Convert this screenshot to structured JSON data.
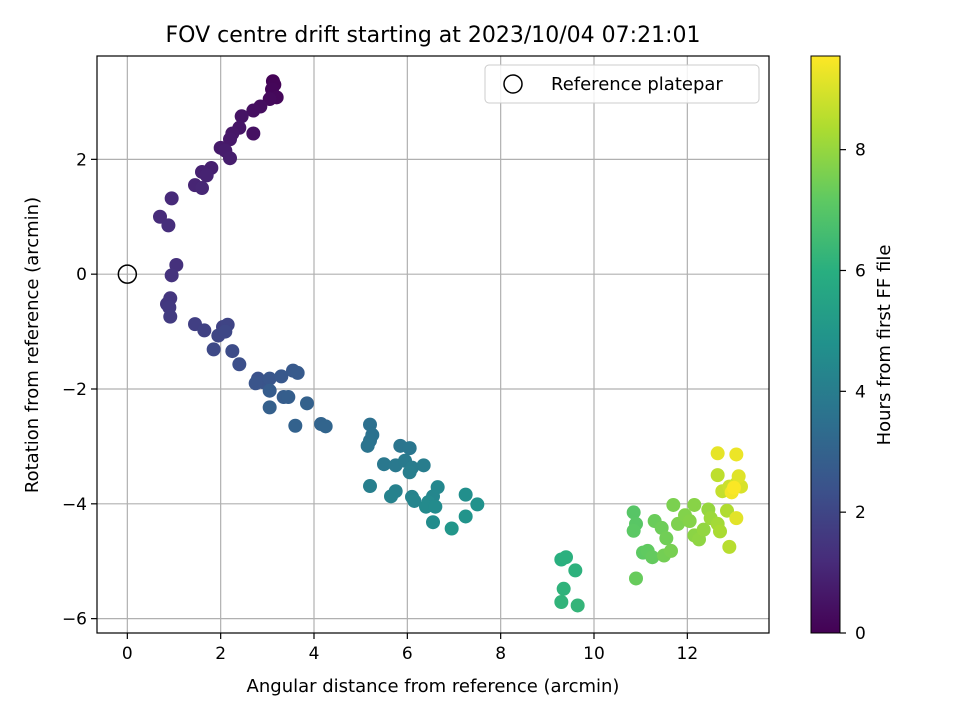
{
  "chart_data": {
    "type": "scatter",
    "title": "FOV centre drift starting at 2023/10/04 07:21:01",
    "xlabel": "Angular distance from reference (arcmin)",
    "ylabel": "Rotation from reference (arcmin)",
    "xlim": [
      -0.65,
      13.75
    ],
    "ylim": [
      -6.25,
      3.8
    ],
    "xticks": [
      0,
      2,
      4,
      6,
      8,
      10,
      12
    ],
    "yticks": [
      -6,
      -4,
      -2,
      0,
      2
    ],
    "xtick_labels": [
      "0",
      "2",
      "4",
      "6",
      "8",
      "10",
      "12"
    ],
    "ytick_labels": [
      "−6",
      "−4",
      "−2",
      "0",
      "2"
    ],
    "grid": true,
    "legend": {
      "location": "upper right",
      "entries": [
        "Reference platepar"
      ]
    },
    "colorbar": {
      "label": "Hours from first FF file",
      "colormap": "viridis",
      "range": [
        0,
        9.55
      ],
      "ticks": [
        0,
        2,
        4,
        6,
        8
      ],
      "tick_labels": [
        "0",
        "2",
        "4",
        "6",
        "8"
      ]
    },
    "reference_point": {
      "x": 0,
      "y": 0
    },
    "points": [
      {
        "x": 3.12,
        "y": 3.36,
        "h": 0.05
      },
      {
        "x": 3.15,
        "y": 3.3,
        "h": 0.1
      },
      {
        "x": 3.1,
        "y": 3.22,
        "h": 0.15
      },
      {
        "x": 3.2,
        "y": 3.08,
        "h": 0.2
      },
      {
        "x": 3.05,
        "y": 3.05,
        "h": 0.25
      },
      {
        "x": 2.85,
        "y": 2.92,
        "h": 0.35
      },
      {
        "x": 2.7,
        "y": 2.85,
        "h": 0.4
      },
      {
        "x": 2.7,
        "y": 2.45,
        "h": 0.45
      },
      {
        "x": 2.45,
        "y": 2.75,
        "h": 0.5
      },
      {
        "x": 2.4,
        "y": 2.55,
        "h": 0.55
      },
      {
        "x": 2.25,
        "y": 2.45,
        "h": 0.6
      },
      {
        "x": 2.2,
        "y": 2.35,
        "h": 0.65
      },
      {
        "x": 2.0,
        "y": 2.2,
        "h": 0.7
      },
      {
        "x": 2.1,
        "y": 2.15,
        "h": 0.75
      },
      {
        "x": 2.2,
        "y": 2.02,
        "h": 0.8
      },
      {
        "x": 1.8,
        "y": 1.85,
        "h": 0.85
      },
      {
        "x": 1.6,
        "y": 1.78,
        "h": 0.9
      },
      {
        "x": 1.7,
        "y": 1.72,
        "h": 0.95
      },
      {
        "x": 1.45,
        "y": 1.55,
        "h": 1.0
      },
      {
        "x": 1.6,
        "y": 1.5,
        "h": 1.05
      },
      {
        "x": 0.95,
        "y": 1.32,
        "h": 1.15
      },
      {
        "x": 0.7,
        "y": 1.0,
        "h": 1.2
      },
      {
        "x": 0.88,
        "y": 0.85,
        "h": 1.25
      },
      {
        "x": 1.05,
        "y": 0.16,
        "h": 1.35
      },
      {
        "x": 0.95,
        "y": -0.02,
        "h": 1.4
      },
      {
        "x": 0.92,
        "y": -0.42,
        "h": 1.5
      },
      {
        "x": 0.85,
        "y": -0.52,
        "h": 1.55
      },
      {
        "x": 0.9,
        "y": -0.58,
        "h": 1.6
      },
      {
        "x": 0.92,
        "y": -0.74,
        "h": 1.65
      },
      {
        "x": 1.45,
        "y": -0.87,
        "h": 1.8
      },
      {
        "x": 1.65,
        "y": -0.98,
        "h": 1.85
      },
      {
        "x": 2.05,
        "y": -0.92,
        "h": 1.9
      },
      {
        "x": 2.15,
        "y": -0.88,
        "h": 1.95
      },
      {
        "x": 1.95,
        "y": -1.07,
        "h": 2.0
      },
      {
        "x": 2.1,
        "y": -1.0,
        "h": 2.05
      },
      {
        "x": 1.85,
        "y": -1.31,
        "h": 2.1
      },
      {
        "x": 2.25,
        "y": -1.34,
        "h": 2.2
      },
      {
        "x": 2.4,
        "y": -1.57,
        "h": 2.3
      },
      {
        "x": 2.8,
        "y": -1.82,
        "h": 2.4
      },
      {
        "x": 2.9,
        "y": -1.88,
        "h": 2.45
      },
      {
        "x": 2.75,
        "y": -1.9,
        "h": 2.5
      },
      {
        "x": 3.05,
        "y": -1.82,
        "h": 2.55
      },
      {
        "x": 3.3,
        "y": -1.78,
        "h": 2.6
      },
      {
        "x": 3.55,
        "y": -1.68,
        "h": 2.65
      },
      {
        "x": 3.65,
        "y": -1.72,
        "h": 2.7
      },
      {
        "x": 3.05,
        "y": -2.03,
        "h": 2.75
      },
      {
        "x": 3.35,
        "y": -2.14,
        "h": 2.8
      },
      {
        "x": 3.45,
        "y": -2.14,
        "h": 2.85
      },
      {
        "x": 3.05,
        "y": -2.32,
        "h": 2.9
      },
      {
        "x": 3.85,
        "y": -2.25,
        "h": 2.95
      },
      {
        "x": 3.6,
        "y": -2.64,
        "h": 3.0
      },
      {
        "x": 4.15,
        "y": -2.61,
        "h": 3.05
      },
      {
        "x": 4.25,
        "y": -2.65,
        "h": 3.1
      },
      {
        "x": 5.2,
        "y": -2.62,
        "h": 3.5
      },
      {
        "x": 5.25,
        "y": -2.8,
        "h": 3.55
      },
      {
        "x": 5.2,
        "y": -2.9,
        "h": 3.6
      },
      {
        "x": 5.15,
        "y": -2.99,
        "h": 3.65
      },
      {
        "x": 5.85,
        "y": -2.99,
        "h": 3.7
      },
      {
        "x": 6.05,
        "y": -3.03,
        "h": 3.75
      },
      {
        "x": 5.5,
        "y": -3.31,
        "h": 3.8
      },
      {
        "x": 5.75,
        "y": -3.33,
        "h": 3.85
      },
      {
        "x": 5.95,
        "y": -3.25,
        "h": 3.9
      },
      {
        "x": 6.1,
        "y": -3.37,
        "h": 3.95
      },
      {
        "x": 6.35,
        "y": -3.33,
        "h": 4.0
      },
      {
        "x": 6.05,
        "y": -3.45,
        "h": 4.05
      },
      {
        "x": 5.2,
        "y": -3.69,
        "h": 4.1
      },
      {
        "x": 5.75,
        "y": -3.78,
        "h": 4.15
      },
      {
        "x": 5.65,
        "y": -3.87,
        "h": 4.2
      },
      {
        "x": 6.1,
        "y": -3.88,
        "h": 4.25
      },
      {
        "x": 6.15,
        "y": -3.95,
        "h": 4.3
      },
      {
        "x": 6.55,
        "y": -3.87,
        "h": 4.35
      },
      {
        "x": 6.65,
        "y": -3.71,
        "h": 4.4
      },
      {
        "x": 6.45,
        "y": -3.97,
        "h": 4.45
      },
      {
        "x": 6.4,
        "y": -4.05,
        "h": 4.5
      },
      {
        "x": 6.6,
        "y": -4.05,
        "h": 4.55
      },
      {
        "x": 6.55,
        "y": -4.32,
        "h": 4.6
      },
      {
        "x": 7.25,
        "y": -3.84,
        "h": 4.7
      },
      {
        "x": 7.5,
        "y": -4.01,
        "h": 4.8
      },
      {
        "x": 7.25,
        "y": -4.22,
        "h": 4.9
      },
      {
        "x": 6.95,
        "y": -4.43,
        "h": 5.0
      },
      {
        "x": 9.3,
        "y": -4.97,
        "h": 6.0
      },
      {
        "x": 9.4,
        "y": -4.93,
        "h": 6.05
      },
      {
        "x": 9.6,
        "y": -5.16,
        "h": 6.1
      },
      {
        "x": 9.35,
        "y": -5.48,
        "h": 6.15
      },
      {
        "x": 9.3,
        "y": -5.71,
        "h": 6.2
      },
      {
        "x": 9.65,
        "y": -5.77,
        "h": 6.25
      },
      {
        "x": 10.85,
        "y": -4.15,
        "h": 7.0
      },
      {
        "x": 10.9,
        "y": -4.35,
        "h": 7.05
      },
      {
        "x": 10.85,
        "y": -4.47,
        "h": 7.1
      },
      {
        "x": 11.05,
        "y": -4.85,
        "h": 7.15
      },
      {
        "x": 11.15,
        "y": -4.82,
        "h": 7.2
      },
      {
        "x": 11.25,
        "y": -4.93,
        "h": 7.25
      },
      {
        "x": 10.9,
        "y": -5.3,
        "h": 7.3
      },
      {
        "x": 11.3,
        "y": -4.3,
        "h": 7.35
      },
      {
        "x": 11.45,
        "y": -4.42,
        "h": 7.4
      },
      {
        "x": 11.55,
        "y": -4.6,
        "h": 7.45
      },
      {
        "x": 11.5,
        "y": -4.9,
        "h": 7.5
      },
      {
        "x": 11.65,
        "y": -4.82,
        "h": 7.55
      },
      {
        "x": 11.7,
        "y": -4.02,
        "h": 7.6
      },
      {
        "x": 11.8,
        "y": -4.35,
        "h": 7.65
      },
      {
        "x": 11.95,
        "y": -4.2,
        "h": 7.7
      },
      {
        "x": 12.05,
        "y": -4.3,
        "h": 7.75
      },
      {
        "x": 12.15,
        "y": -4.02,
        "h": 7.8
      },
      {
        "x": 12.15,
        "y": -4.55,
        "h": 7.85
      },
      {
        "x": 12.25,
        "y": -4.62,
        "h": 7.9
      },
      {
        "x": 12.35,
        "y": -4.45,
        "h": 7.95
      },
      {
        "x": 12.45,
        "y": -4.1,
        "h": 8.0
      },
      {
        "x": 12.5,
        "y": -4.25,
        "h": 8.1
      },
      {
        "x": 12.65,
        "y": -4.35,
        "h": 8.2
      },
      {
        "x": 12.7,
        "y": -4.48,
        "h": 8.3
      },
      {
        "x": 12.85,
        "y": -4.12,
        "h": 8.4
      },
      {
        "x": 12.9,
        "y": -4.75,
        "h": 8.5
      },
      {
        "x": 12.65,
        "y": -3.5,
        "h": 8.6
      },
      {
        "x": 12.75,
        "y": -3.78,
        "h": 8.7
      },
      {
        "x": 12.9,
        "y": -3.7,
        "h": 8.8
      },
      {
        "x": 13.05,
        "y": -3.65,
        "h": 8.9
      },
      {
        "x": 13.15,
        "y": -3.7,
        "h": 9.0
      },
      {
        "x": 13.1,
        "y": -3.52,
        "h": 9.1
      },
      {
        "x": 13.05,
        "y": -4.25,
        "h": 9.15
      },
      {
        "x": 12.65,
        "y": -3.12,
        "h": 9.2
      },
      {
        "x": 13.05,
        "y": -3.14,
        "h": 9.3
      },
      {
        "x": 12.95,
        "y": -3.8,
        "h": 9.4
      },
      {
        "x": 13.0,
        "y": -3.72,
        "h": 9.5
      }
    ]
  }
}
